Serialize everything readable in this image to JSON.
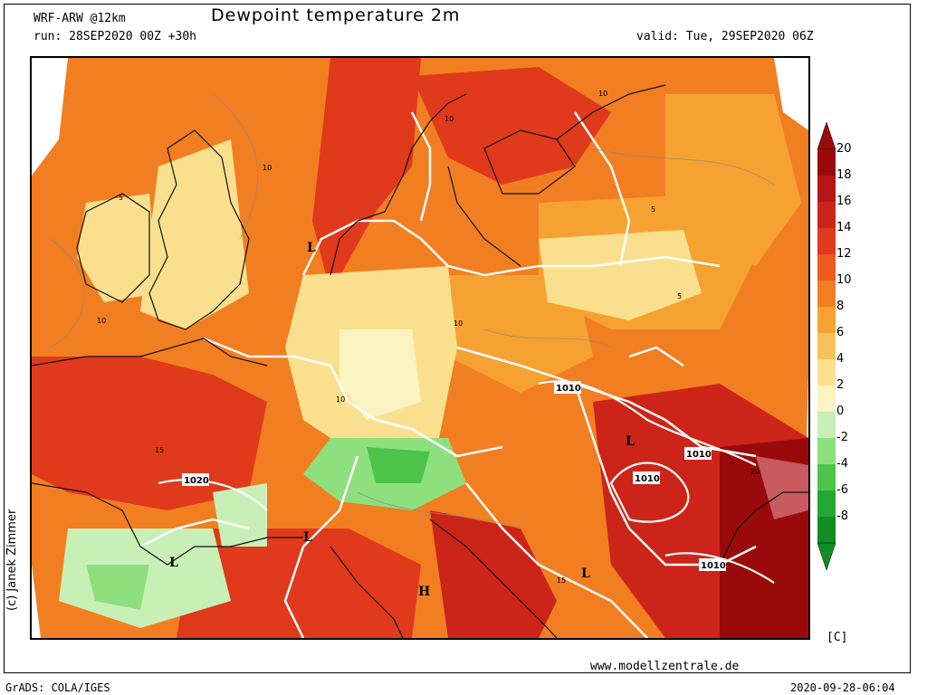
{
  "header": {
    "model": "WRF-ARW @12km",
    "run": "run: 28SEP2020 00Z +30h",
    "title": "Dewpoint temperature 2m",
    "valid": "valid: Tue, 29SEP2020 06Z"
  },
  "footer": {
    "credit": "(c) Janek Zimmer",
    "website": "www.modellzentrale.de",
    "grads": "GrADS: COLA/IGES",
    "timestamp": "2020-09-28-06:04"
  },
  "legend": {
    "unit": "[C]",
    "levels": [
      "20",
      "18",
      "16",
      "14",
      "12",
      "10",
      "8",
      "6",
      "4",
      "2",
      "0",
      "-2",
      "-4",
      "-6",
      "-8"
    ],
    "colors": [
      "#9a0a0a",
      "#b21616",
      "#cc2418",
      "#e0391c",
      "#ec5a1e",
      "#f27e22",
      "#f6a232",
      "#f8c25a",
      "#fae08e",
      "#faf3c2",
      "#c8f0b6",
      "#8ee07e",
      "#4cc548",
      "#22a830",
      "#108e22"
    ]
  },
  "map": {
    "pressure_centers": [
      {
        "label": "L"
      },
      {
        "label": "L"
      },
      {
        "label": "L"
      },
      {
        "label": "L"
      },
      {
        "label": "L"
      },
      {
        "label": "H"
      }
    ],
    "isobar_labels": [
      "1020",
      "1010",
      "1010",
      "1010",
      "1010"
    ],
    "contour_labels": [
      "5",
      "10",
      "15",
      "20"
    ]
  }
}
